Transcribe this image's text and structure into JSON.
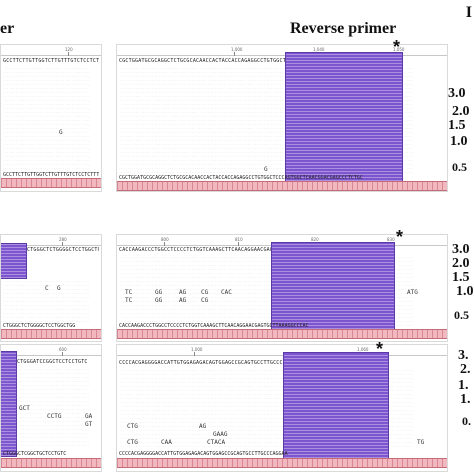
{
  "headers": {
    "left": "er",
    "right": "Reverse primer",
    "panel_letter": "I"
  },
  "rows": [
    {
      "left": {
        "ruler": [
          "120"
        ],
        "ref": "GCCTTCTTGTTGGTCTTGTTTGTCTCCTCTTTACAA",
        "bottom": "GCCTTCTTGTTGGTCTTGTTTGTCTCCTCTTTACAA",
        "variants": [
          "G"
        ]
      },
      "right": {
        "ruler": [
          "1,000",
          "1,040",
          "1,050"
        ],
        "ref": "CGCTGGATGCGCAGGCTCTGCGCACAACCACTACCACCAGAGGCCTGTGGCTCCCAGTGGCTCAACGGACGAGCCCTCTGC",
        "bottom": "CGCTGGATGCGCAGGCTCTGCGCACAACCACTACCACCAGAGGCCTGTGGCTCCCAGTGGCTCAACGGACGAGCCCTCTGC",
        "variants": [
          "G",
          "G"
        ]
      },
      "sizes": [
        "3.0",
        "2.0",
        "1.5",
        "1.0",
        "0.5"
      ]
    },
    {
      "left": {
        "ruler": [
          "280"
        ],
        "ref": "CTGGGCTCTGGGGCTCCTGGCTGG",
        "bottom": "CTGGGCTCTGGGGCTCCTGGCTGG",
        "variants": [
          "C",
          "G"
        ]
      },
      "right": {
        "ruler": [
          "800",
          "810",
          "820",
          "830"
        ],
        "ref": "CACCAAGACCCTGGCCTCCCCTCTGGTCAAAGCTTCAACAGGAACGAGTGCTTAAAGGCCCAC",
        "bottom": "CACCAAGACCCTGGCCTCCCCTCTGGTCAAAGCTTCAACAGGAACGAGTGCTTAAAGGCCCAC",
        "variants": [
          "TC",
          "GG",
          "AG",
          "CG",
          "CAC",
          "ATG",
          "TC",
          "GG",
          "AG",
          "CG"
        ]
      },
      "sizes": [
        "3.0",
        "2.0",
        "1.5",
        "1.0",
        "0.5"
      ]
    },
    {
      "left": {
        "ruler": [
          "600"
        ],
        "ref": "CTGGGATCCGGCTCCTCCTGTC",
        "bottom": "CTGGGCTCGGCTGCTCCTGTC",
        "variants": [
          "GCT",
          "CCTG",
          "GA",
          "GT"
        ]
      },
      "right": {
        "ruler": [
          "1,000",
          "1,060"
        ],
        "ref": "CCCCACGAGGGGACCATTGTGGAGAGACAGTGGAGCCGCAGTGCCTTGCCCAGGAA",
        "bottom": "CCCCACGAGGGGACCATTGTGGAGAGACAGTGGAGCCGCAGTGCCTTGCCCAGGAA",
        "variants": [
          "CTG",
          "AG",
          "GAAG",
          "CAA",
          "CTG",
          "CTACA",
          "TG"
        ]
      },
      "sizes": [
        "3.",
        "2.",
        "1.",
        "1.",
        "0."
      ]
    }
  ],
  "marker": {
    "star": "*"
  }
}
